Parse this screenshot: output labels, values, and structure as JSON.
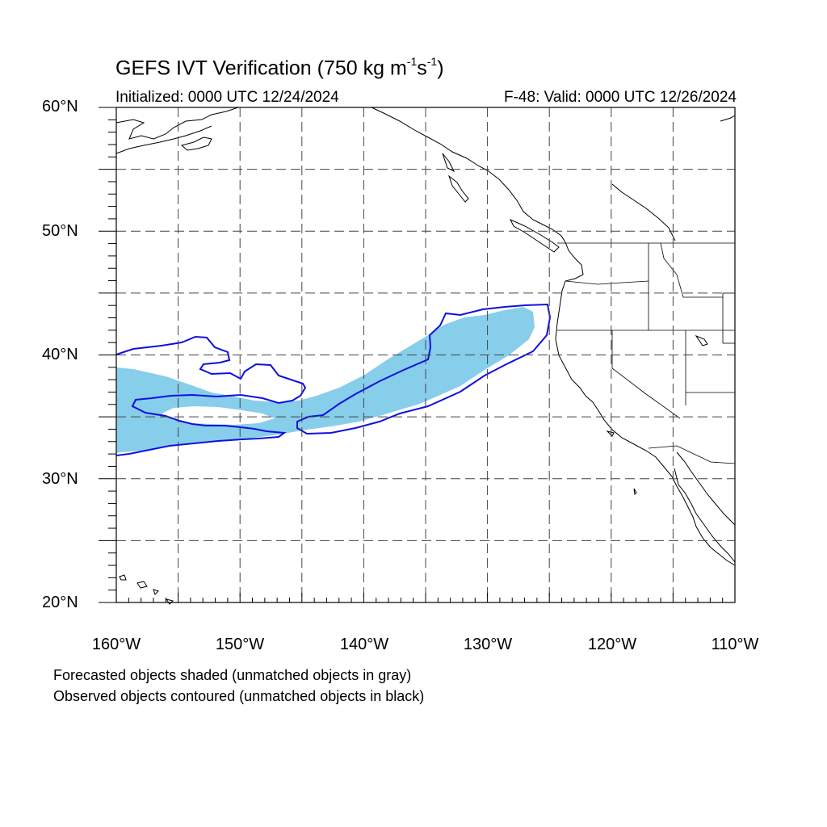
{
  "header": {
    "title_main": "GEFS IVT Verification (750 kg m",
    "title_exp1": "-1",
    "title_mid": "s",
    "title_exp2": "-1",
    "title_end": ")",
    "initialized": "Initialized: 0000 UTC 12/24/2024",
    "valid": "F-48: Valid: 0000 UTC 12/26/2024"
  },
  "axes": {
    "lat_labels": [
      "60°N",
      "50°N",
      "40°N",
      "30°N",
      "20°N"
    ],
    "lon_labels": [
      "160°W",
      "150°W",
      "140°W",
      "130°W",
      "120°W",
      "110°W"
    ],
    "lon_range": [
      -160,
      -110
    ],
    "lat_range": [
      20,
      60
    ],
    "grid_spacing_deg": 5
  },
  "legend": {
    "line1": "Forecasted objects shaded (unmatched objects in gray)",
    "line2": "Observed objects contoured (unmatched objects in black)"
  },
  "colors": {
    "forecast_fill": "#87ceea",
    "observed_contour": "#1010e0",
    "coastline": "#000000",
    "grid": "#444444"
  }
}
